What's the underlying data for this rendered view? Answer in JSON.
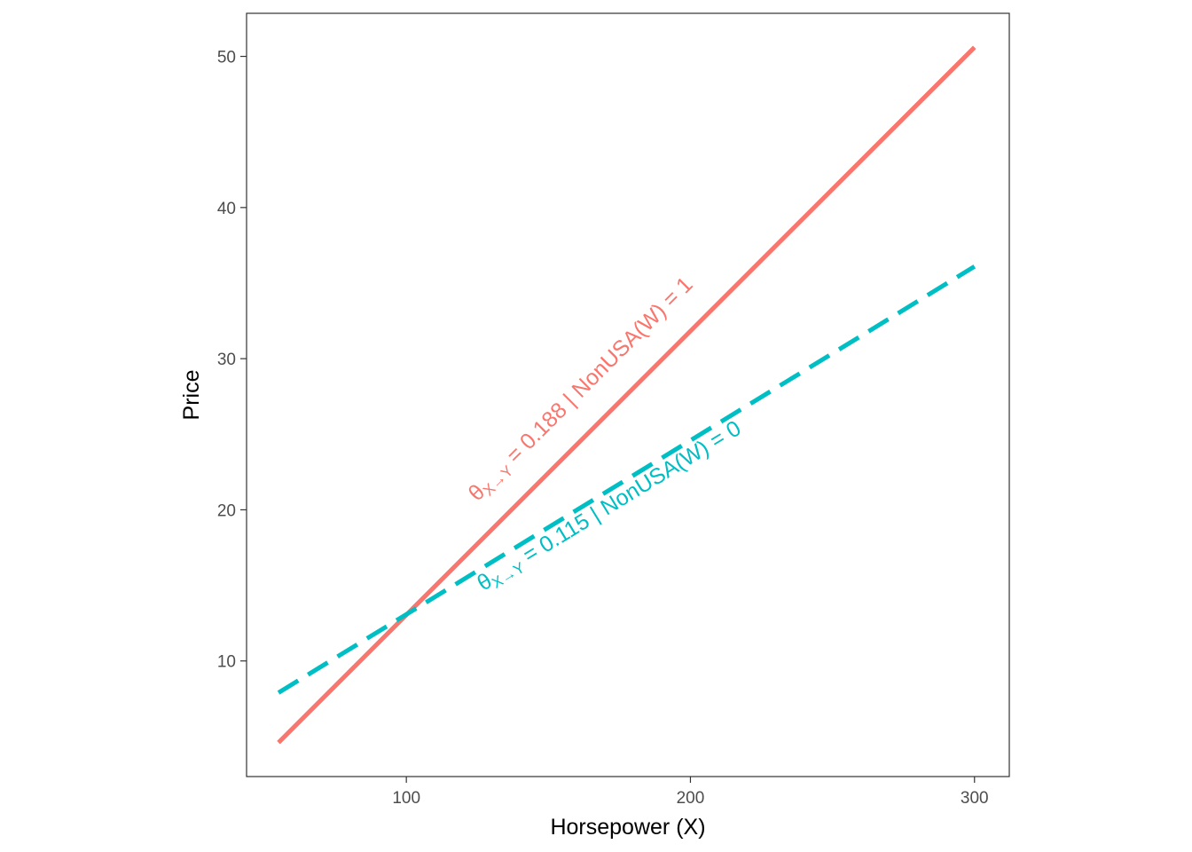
{
  "chart_data": {
    "type": "line",
    "title": "",
    "xlabel": "Horsepower (X)",
    "ylabel": "Price",
    "xlim": [
      43.75,
      312.25
    ],
    "ylim": [
      2.35,
      52.85
    ],
    "xticks": [
      100,
      200,
      300
    ],
    "yticks": [
      10,
      20,
      30,
      40,
      50
    ],
    "grid": false,
    "series": [
      {
        "name": "",
        "color": "#F8766D",
        "dash": "solid",
        "x": [
          55,
          300
        ],
        "y": [
          4.6,
          50.6
        ],
        "label": {
          "theta": "θ",
          "subscript": "X→Y",
          "text": " = 0.188 | NonUSA(W) = 1",
          "at": [
            125,
            20.5
          ]
        }
      },
      {
        "name": "",
        "color": "#00BFC4",
        "dash": "dashed",
        "x": [
          55,
          300
        ],
        "y": [
          7.9,
          36.1
        ],
        "label": {
          "theta": "θ",
          "subscript": "X→Y",
          "text": " = 0.115 | NonUSA(W) = 0",
          "at": [
            127,
            14.6
          ]
        }
      }
    ]
  }
}
